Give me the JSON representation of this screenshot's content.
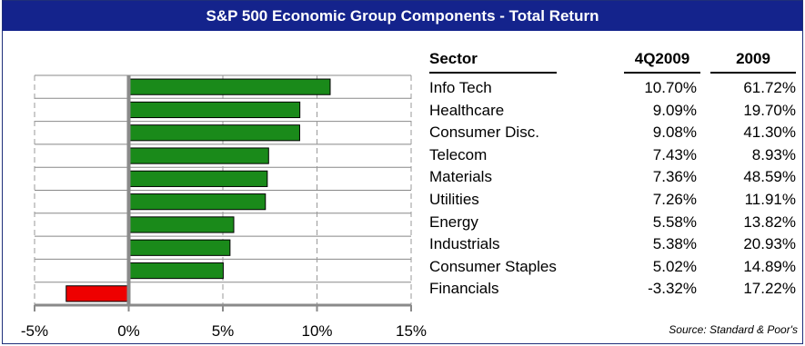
{
  "title": "S&P 500 Economic Group Components - Total Return",
  "source": "Source: Standard & Poor's",
  "table": {
    "headers": [
      "Sector",
      "4Q2009",
      "2009"
    ],
    "rows": [
      {
        "sector": "Info Tech",
        "q4": "10.70%",
        "year": "61.72%"
      },
      {
        "sector": "Healthcare",
        "q4": "9.09%",
        "year": "19.70%"
      },
      {
        "sector": "Consumer Disc.",
        "q4": "9.08%",
        "year": "41.30%"
      },
      {
        "sector": "Telecom",
        "q4": "7.43%",
        "year": "8.93%"
      },
      {
        "sector": "Materials",
        "q4": "7.36%",
        "year": "48.59%"
      },
      {
        "sector": "Utilities",
        "q4": "7.26%",
        "year": "11.91%"
      },
      {
        "sector": "Energy",
        "q4": "5.58%",
        "year": "13.82%"
      },
      {
        "sector": "Industrials",
        "q4": "5.38%",
        "year": "20.93%"
      },
      {
        "sector": "Consumer Staples",
        "q4": "5.02%",
        "year": "14.89%"
      },
      {
        "sector": "Financials",
        "q4": "-3.32%",
        "year": "17.22%"
      }
    ]
  },
  "chart_data": {
    "type": "bar",
    "orientation": "horizontal",
    "categories": [
      "Info Tech",
      "Healthcare",
      "Consumer Disc.",
      "Telecom",
      "Materials",
      "Utilities",
      "Energy",
      "Industrials",
      "Consumer Staples",
      "Financials"
    ],
    "values": [
      10.7,
      9.09,
      9.08,
      7.43,
      7.36,
      7.26,
      5.58,
      5.38,
      5.02,
      -3.32
    ],
    "xlim": [
      -5,
      15
    ],
    "xticks": [
      -5,
      0,
      5,
      10,
      15
    ],
    "xtick_labels": [
      "-5%",
      "0%",
      "5%",
      "10%",
      "15%"
    ],
    "grid": true,
    "colors": {
      "positive": "#1a8a1a",
      "negative": "#ee0000",
      "zero_line": "#8a8a8a"
    }
  }
}
